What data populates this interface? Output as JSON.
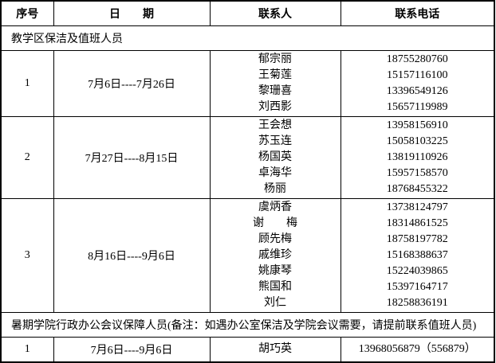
{
  "colors": {
    "background": "#ffffff",
    "border": "#000000",
    "text": "#000000"
  },
  "table": {
    "headers": [
      "序号",
      "日　　期",
      "联系人",
      "联系电话"
    ],
    "sections": [
      {
        "title": "教学区保洁及值班人员",
        "rows": [
          {
            "no": "1",
            "date": "7月6日----7月26日",
            "contacts": [
              {
                "name": "郁宗丽",
                "phone": "18755280760"
              },
              {
                "name": "王菊莲",
                "phone": "15157116100"
              },
              {
                "name": "黎珊喜",
                "phone": "13396549126"
              },
              {
                "name": "刘西影",
                "phone": "15657119989"
              }
            ]
          },
          {
            "no": "2",
            "date": "7月27日----8月15日",
            "contacts": [
              {
                "name": "王会想",
                "phone": "13958156910"
              },
              {
                "name": "苏玉连",
                "phone": "15058103225"
              },
              {
                "name": "杨国英",
                "phone": "13819110926"
              },
              {
                "name": "卓海华",
                "phone": "15957158570"
              },
              {
                "name": "杨丽",
                "phone": "18768455322"
              }
            ]
          },
          {
            "no": "3",
            "date": "8月16日----9月6日",
            "contacts": [
              {
                "name": "虞炳香",
                "phone": "13738124797"
              },
              {
                "name": "谢　　梅",
                "phone": "18314861525"
              },
              {
                "name": "顾先梅",
                "phone": "18758197782"
              },
              {
                "name": "戚维珍",
                "phone": "15168388637"
              },
              {
                "name": "姚康琴",
                "phone": "15224039865"
              },
              {
                "name": "熊国和",
                "phone": "15397164717"
              },
              {
                "name": "刘仁",
                "phone": "18258836191"
              }
            ]
          }
        ]
      },
      {
        "title": "暑期学院行政办公会议保障人员(备注：如遇办公室保洁及学院会议需要，请提前联系值班人员)",
        "rows": [
          {
            "no": "1",
            "date": "7月6日----9月6日",
            "contacts": [
              {
                "name": "胡巧英",
                "phone": "13968056879（556879）"
              }
            ]
          }
        ]
      }
    ]
  }
}
